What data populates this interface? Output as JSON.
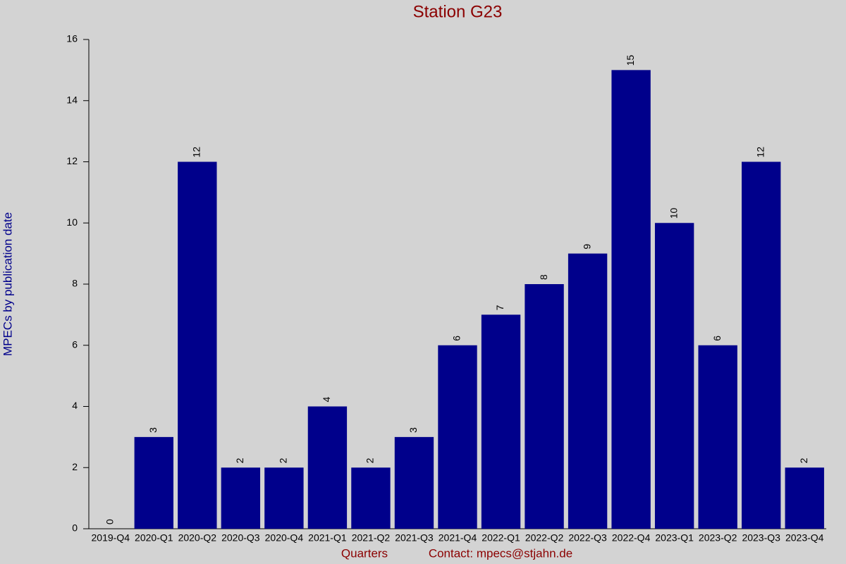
{
  "chart_data": {
    "type": "bar",
    "title": "Station G23",
    "x_label": "Quarters",
    "y_label": "MPECs by publication date",
    "annotation": "Contact: mpecs@stjahn.de",
    "categories": [
      "2019-Q4",
      "2020-Q1",
      "2020-Q2",
      "2020-Q3",
      "2020-Q4",
      "2021-Q1",
      "2021-Q2",
      "2021-Q3",
      "2021-Q4",
      "2022-Q1",
      "2022-Q2",
      "2022-Q3",
      "2022-Q4",
      "2023-Q1",
      "2023-Q2",
      "2023-Q3",
      "2023-Q4"
    ],
    "values": [
      0,
      3,
      12,
      2,
      2,
      4,
      2,
      3,
      6,
      7,
      8,
      9,
      15,
      10,
      6,
      12,
      2
    ],
    "color": "#00008b",
    "ylim": [
      0,
      16
    ],
    "yticks": [
      0,
      2,
      4,
      6,
      8,
      10,
      12,
      14,
      16
    ],
    "grid": false
  }
}
